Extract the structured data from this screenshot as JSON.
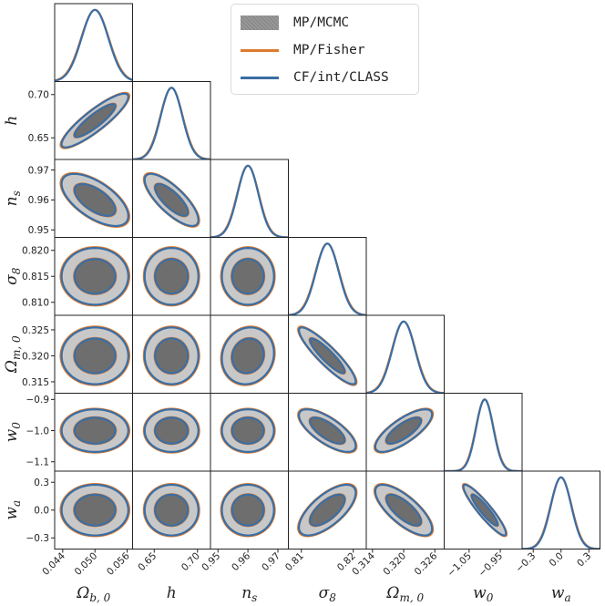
{
  "chart_data": {
    "type": "corner",
    "params": [
      {
        "key": "omega_b",
        "label_main": "Ω",
        "label_sub": "b, 0",
        "mean": 0.05,
        "sigma": 0.0025,
        "range": [
          0.0425,
          0.057
        ],
        "ticks": [
          0.044,
          0.05,
          0.056
        ],
        "tick_labels": [
          "0.044",
          "0.050",
          "0.056"
        ]
      },
      {
        "key": "h",
        "label_main": "h",
        "label_sub": "",
        "mean": 0.67,
        "sigma": 0.0125,
        "range": [
          0.625,
          0.715
        ],
        "ticks": [
          0.65,
          0.7
        ],
        "tick_labels": [
          "0.65",
          "0.70"
        ]
      },
      {
        "key": "n_s",
        "label_main": "n",
        "label_sub": "s",
        "mean": 0.96,
        "sigma": 0.0035,
        "range": [
          0.9475,
          0.9735
        ],
        "ticks": [
          0.95,
          0.96,
          0.97
        ],
        "tick_labels": [
          "0.95",
          "0.96",
          "0.97"
        ]
      },
      {
        "key": "sigma_8",
        "label_main": "σ",
        "label_sub": "8",
        "mean": 0.815,
        "sigma": 0.0022,
        "range": [
          0.8075,
          0.8225
        ],
        "ticks": [
          0.81,
          0.815,
          0.82
        ],
        "tick_labels": [
          "0.810",
          "0.815",
          "0.820"
        ]
      },
      {
        "key": "omega_m",
        "label_main": "Ω",
        "label_sub": "m, 0",
        "mean": 0.32,
        "sigma": 0.0022,
        "range": [
          0.3128,
          0.3278
        ],
        "ticks": [
          0.315,
          0.32,
          0.325
        ],
        "tick_labels": [
          "0.315",
          "0.320",
          "0.325"
        ]
      },
      {
        "key": "w0",
        "label_main": "w",
        "label_sub": "0",
        "mean": -1.0,
        "sigma": 0.0275,
        "range": [
          -1.13,
          -0.88
        ],
        "ticks": [
          -1.1,
          -1.0,
          -0.9
        ],
        "tick_labels": [
          "−1.1",
          "−1.0",
          "−0.9"
        ]
      },
      {
        "key": "wa",
        "label_main": "w",
        "label_sub": "a",
        "mean": 0.0,
        "sigma": 0.11,
        "range": [
          -0.42,
          0.42
        ],
        "ticks": [
          -0.3,
          0.0,
          0.3
        ],
        "tick_labels": [
          "−0.3",
          "0.0",
          "0.3"
        ]
      }
    ],
    "x_tick_labels": [
      [
        "0.044",
        "0.050",
        "0.056"
      ],
      [
        "0.65",
        "0.70"
      ],
      [
        "0.95",
        "0.96",
        "0.97"
      ],
      [
        "0.81",
        "0.82"
      ],
      [
        "0.314",
        "0.320",
        "0.326"
      ],
      [
        "−1.05",
        "−0.95"
      ],
      [
        "−0.3",
        "0.0",
        "0.3"
      ]
    ],
    "correlations": [
      [
        1.0,
        0.88,
        -0.62,
        0.0,
        0.0,
        0.0,
        0.0
      ],
      [
        0.88,
        1.0,
        -0.77,
        0.0,
        0.0,
        0.0,
        0.0
      ],
      [
        -0.62,
        -0.77,
        1.0,
        0.0,
        0.1,
        0.0,
        0.0
      ],
      [
        0.0,
        0.0,
        0.0,
        1.0,
        -0.9,
        -0.72,
        0.68
      ],
      [
        0.0,
        0.0,
        0.1,
        -0.9,
        1.0,
        0.76,
        -0.74
      ],
      [
        0.0,
        0.0,
        0.0,
        -0.72,
        0.76,
        1.0,
        -0.92
      ],
      [
        0.0,
        0.0,
        0.0,
        0.68,
        -0.74,
        -0.92,
        1.0
      ]
    ],
    "series": [
      {
        "name": "MP/MCMC",
        "style": "filled contours",
        "inner_fill": "#6e6e6e",
        "outer_fill": "#c8c8c8",
        "sigma_scale": 1.0
      },
      {
        "name": "MP/Fisher",
        "style": "line",
        "color": "#dd7a2e",
        "sigma_scale": 1.03
      },
      {
        "name": "CF/int/CLASS",
        "style": "line",
        "color": "#3a6ea5",
        "sigma_scale": 1.0
      }
    ],
    "contour_levels": [
      "68%",
      "95%"
    ],
    "legend_position": "top-right"
  },
  "legend": {
    "mcmc_label": "MP/MCMC",
    "fisher_label": "MP/Fisher",
    "class_label": "CF/int/CLASS"
  }
}
